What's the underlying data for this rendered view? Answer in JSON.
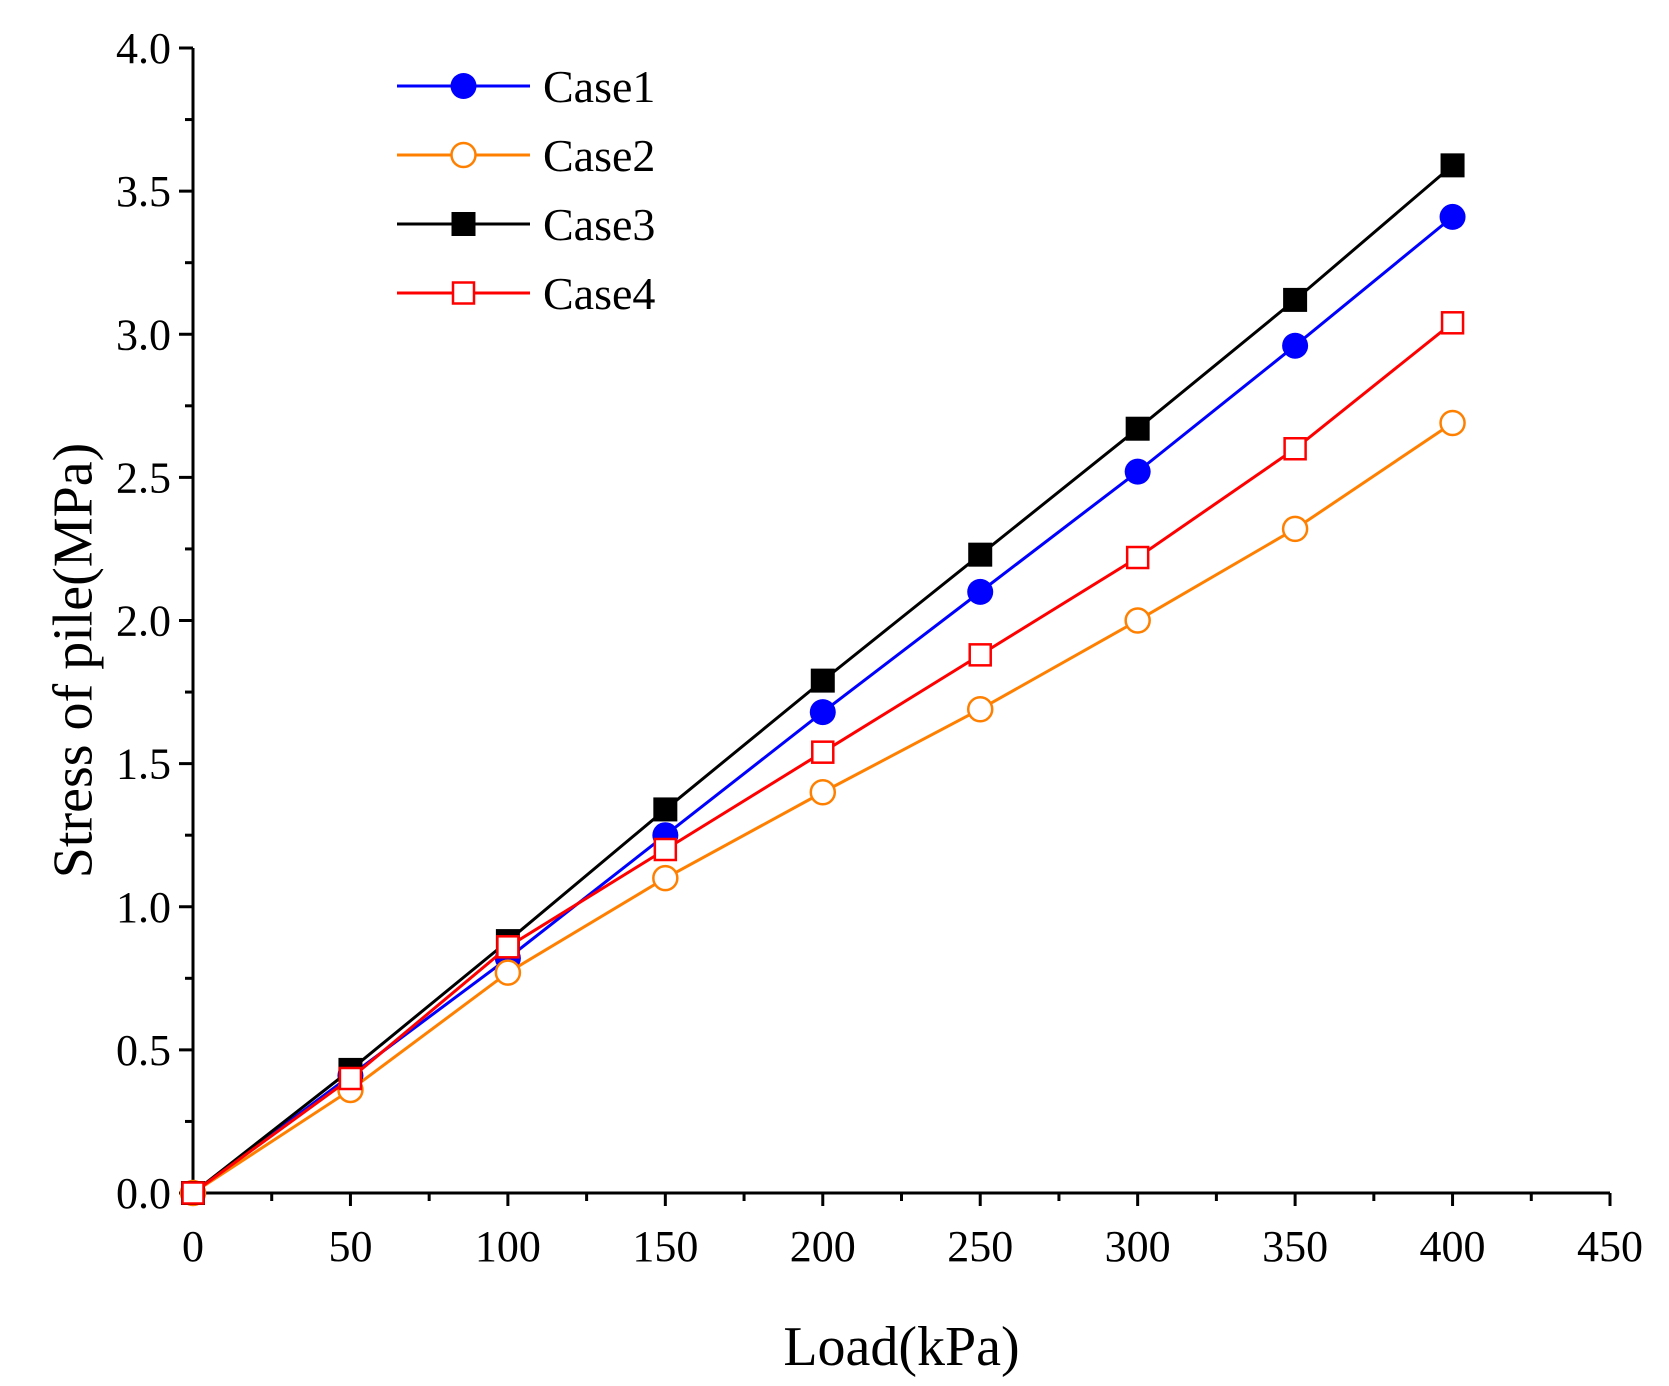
{
  "chart_data": {
    "type": "line",
    "title": "",
    "xlabel": "Load(kPa)",
    "ylabel": "Stress of pile(MPa)",
    "xlim": [
      0,
      450
    ],
    "ylim": [
      0,
      4.0
    ],
    "xticks": [
      0,
      50,
      100,
      150,
      200,
      250,
      300,
      350,
      400,
      450
    ],
    "xtick_labels": [
      "0",
      "50",
      "100",
      "150",
      "200",
      "250",
      "300",
      "350",
      "400",
      "450"
    ],
    "yticks": [
      0,
      0.5,
      1.0,
      1.5,
      2.0,
      2.5,
      3.0,
      3.5,
      4.0
    ],
    "ytick_labels": [
      "0.0",
      "0.5",
      "1.0",
      "1.5",
      "2.0",
      "2.5",
      "3.0",
      "3.5",
      "4.0"
    ],
    "grid": false,
    "legend_position": "top-left",
    "x": [
      0,
      50,
      100,
      150,
      200,
      250,
      300,
      350,
      400
    ],
    "series": [
      {
        "name": "Case1",
        "color": "#0000ff",
        "marker": "circle",
        "filled": true,
        "values": [
          0,
          0.41,
          0.82,
          1.25,
          1.68,
          2.1,
          2.52,
          2.96,
          3.41
        ]
      },
      {
        "name": "Case2",
        "color": "#ff8000",
        "marker": "circle",
        "filled": false,
        "values": [
          0,
          0.36,
          0.77,
          1.1,
          1.4,
          1.69,
          2.0,
          2.32,
          2.69
        ]
      },
      {
        "name": "Case3",
        "color": "#000000",
        "marker": "square",
        "filled": true,
        "values": [
          0,
          0.43,
          0.88,
          1.34,
          1.79,
          2.23,
          2.67,
          3.12,
          3.59
        ]
      },
      {
        "name": "Case4",
        "color": "#ff0000",
        "marker": "square",
        "filled": false,
        "values": [
          0,
          0.4,
          0.86,
          1.2,
          1.54,
          1.88,
          2.22,
          2.6,
          3.04
        ]
      }
    ]
  }
}
